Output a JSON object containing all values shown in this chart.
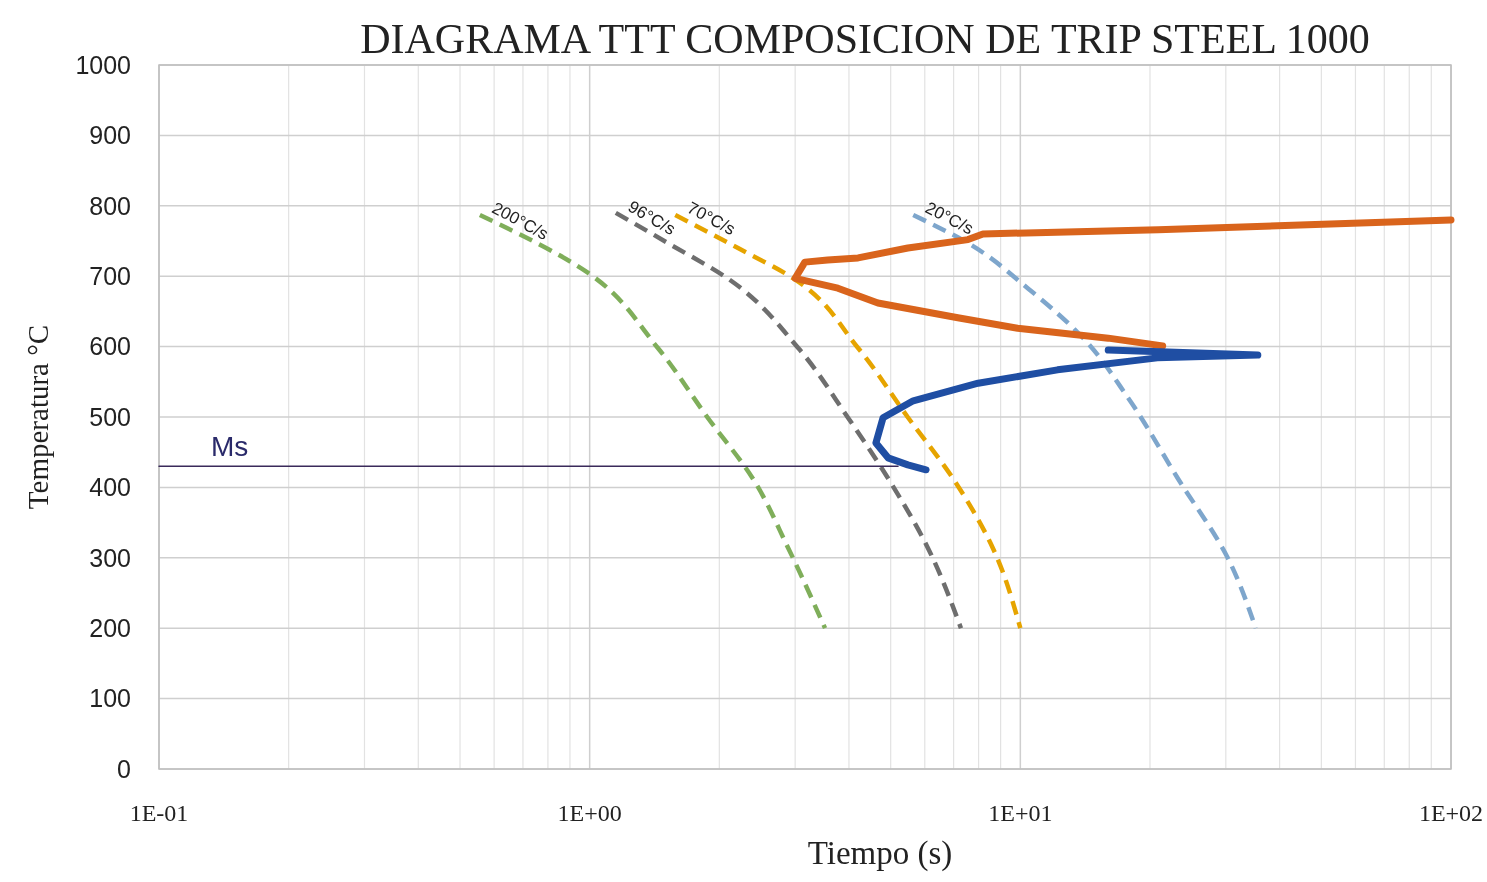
{
  "chart_data": {
    "type": "line",
    "title": "DIAGRAMA TTT COMPOSICION DE TRIP STEEL 1000",
    "xlabel": "Tiempo (s)",
    "ylabel": "Temperatura °C",
    "log": "x",
    "xlim": [
      0.1,
      100
    ],
    "xticks": [
      {
        "value": 0.1,
        "label": "1E-01"
      },
      {
        "value": 1,
        "label": "1E+00"
      },
      {
        "value": 10,
        "label": "1E+01"
      },
      {
        "value": 100,
        "label": "1E+02"
      }
    ],
    "ylim": [
      0,
      1000
    ],
    "yticks": [
      0,
      100,
      200,
      300,
      400,
      500,
      600,
      700,
      800,
      900,
      1000
    ],
    "grid": true,
    "series": [
      {
        "name": "200°C/s",
        "color": "#7fae5a",
        "line_style": "dashed",
        "x": [
          0.556,
          0.99,
          1.44,
          1.88,
          2.39,
          2.89,
          3.52
        ],
        "values": [
          787,
          705,
          598,
          499,
          413,
          314,
          200
        ]
      },
      {
        "name": "96°C/s",
        "color": "#6e6e6e",
        "line_style": "dashed",
        "x": [
          1.15,
          1.52,
          2.09,
          3.05,
          3.98,
          4.93,
          6.1,
          7.28
        ],
        "values": [
          790,
          747,
          697,
          598,
          499,
          413,
          314,
          200
        ]
      },
      {
        "name": "70°C/s",
        "color": "#e6a400",
        "line_style": "dashed",
        "x": [
          1.58,
          2.21,
          2.97,
          4.2,
          5.49,
          6.97,
          8.63,
          10.0
        ],
        "values": [
          787,
          740,
          697,
          598,
          499,
          413,
          314,
          200
        ]
      },
      {
        "name": "20°C/s",
        "color": "#7ea6cc",
        "line_style": "dashed",
        "x": [
          5.64,
          7.56,
          10.4,
          14.0,
          17.8,
          23.2,
          30.3,
          35.2
        ],
        "values": [
          787,
          747,
          683,
          612,
          527,
          413,
          300,
          200
        ]
      },
      {
        "color": "#d9641c",
        "line_style": "solid",
        "x": [
          100,
          46.5,
          20.9,
          8.19,
          7.56,
          5.48,
          4.2,
          3.57,
          3.16,
          3.0,
          3.77,
          4.67,
          7.16,
          9.86,
          16.0,
          21.4
        ],
        "values": [
          780,
          773,
          766,
          760,
          752,
          740,
          726,
          723,
          720,
          697,
          683,
          662,
          641,
          626,
          612,
          601
        ]
      },
      {
        "color": "#1f4ea3",
        "line_style": "solid",
        "x": [
          16,
          35.6,
          20.8,
          12.2,
          7.98,
          5.64,
          4.8,
          4.62,
          4.93,
          5.48,
          6.04
        ],
        "values": [
          595,
          588,
          584,
          567,
          548,
          523,
          499,
          463,
          442,
          432,
          425
        ]
      },
      {
        "name": "Ms",
        "color": "#3a2a5a",
        "line_style": "solid",
        "x": [
          0.1,
          5.2
        ],
        "values": [
          430,
          430
        ]
      }
    ]
  }
}
